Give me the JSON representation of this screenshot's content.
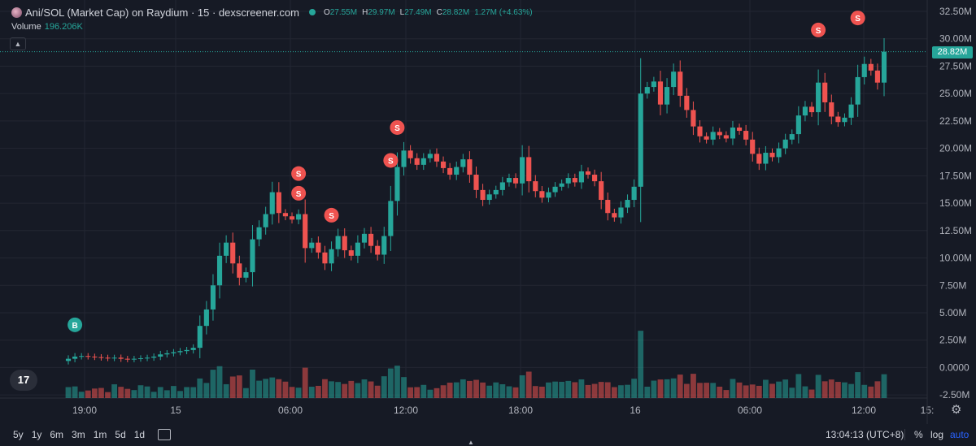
{
  "header": {
    "title": "Ani/SOL (Market Cap) on Raydium · 15 · dexscreener.com",
    "ohlc": [
      {
        "key": "O",
        "value": "27.55M"
      },
      {
        "key": "H",
        "value": "29.97M"
      },
      {
        "key": "L",
        "value": "27.49M"
      },
      {
        "key": "C",
        "value": "28.82M"
      },
      {
        "key": "",
        "value": "1.27M (+4.63%)"
      }
    ],
    "volume_label": "Volume",
    "volume_value": "196.206K"
  },
  "price_tag": "28.82M",
  "tv_logo": "17",
  "bottom_bar": {
    "ranges": [
      "5y",
      "1y",
      "6m",
      "3m",
      "1m",
      "5d",
      "1d"
    ],
    "clock": "13:04:13 (UTC+8)",
    "percent": "%",
    "log": "log",
    "auto": "auto"
  },
  "colors": {
    "up": "#26a69a",
    "down": "#ef5350",
    "background": "#161a25",
    "grid": "#232632"
  },
  "chart_data": {
    "type": "candlestick",
    "title": "Ani/SOL (Market Cap) on Raydium · 15 · dexscreener.com",
    "y_ticks": [
      "32.50M",
      "30.00M",
      "27.50M",
      "25.00M",
      "22.50M",
      "20.00M",
      "17.50M",
      "15.00M",
      "12.50M",
      "10.00M",
      "7.50M",
      "5.00M",
      "2.50M",
      "0.0000",
      "-2.50M"
    ],
    "y_tick_values": [
      32.5,
      30,
      27.5,
      25,
      22.5,
      20,
      17.5,
      15,
      12.5,
      10,
      7.5,
      5,
      2.5,
      0,
      -2.5
    ],
    "x_ticks": [
      "19:00",
      "15",
      "06:00",
      "12:00",
      "18:00",
      "16",
      "06:00",
      "12:00",
      "15:"
    ],
    "ylim": [
      -2.5,
      32.5
    ],
    "last_close": 28.82,
    "markers": [
      {
        "label": "B",
        "index": 1,
        "price": 3.9
      },
      {
        "label": "S",
        "index": 35,
        "price": 17.7
      },
      {
        "label": "S",
        "index": 35,
        "price": 15.9
      },
      {
        "label": "S",
        "index": 40,
        "price": 13.9
      },
      {
        "label": "S",
        "index": 49,
        "price": 18.9
      },
      {
        "label": "S",
        "index": 50,
        "price": 21.9
      },
      {
        "label": "S",
        "index": 114,
        "price": 30.8
      },
      {
        "label": "S",
        "index": 120,
        "price": 31.9
      }
    ],
    "closes": [
      0.8,
      1.0,
      1.05,
      1.0,
      0.95,
      0.9,
      0.85,
      0.9,
      0.8,
      0.75,
      0.8,
      0.85,
      0.9,
      1.0,
      1.2,
      1.3,
      1.4,
      1.5,
      1.6,
      1.8,
      3.8,
      5.3,
      7.5,
      10.2,
      11.4,
      9.5,
      8.2,
      8.7,
      11.7,
      12.8,
      14.0,
      16.0,
      14.1,
      13.8,
      13.5,
      14.0,
      10.9,
      11.4,
      10.5,
      9.5,
      10.8,
      12.0,
      10.7,
      10.2,
      11.4,
      12.2,
      11.1,
      10.3,
      12.0,
      15.2,
      18.3,
      19.8,
      19.1,
      18.5,
      19.1,
      19.5,
      18.8,
      18.2,
      17.6,
      18.3,
      19.0,
      17.6,
      16.2,
      15.3,
      15.8,
      16.2,
      16.9,
      17.3,
      16.8,
      19.2,
      17.0,
      16.1,
      15.5,
      16.0,
      16.5,
      16.8,
      17.3,
      16.9,
      17.9,
      17.6,
      17.0,
      15.3,
      14.1,
      13.7,
      14.6,
      15.3,
      16.5,
      25.0,
      25.6,
      26.1,
      24.0,
      25.6,
      27.0,
      24.8,
      23.5,
      22.0,
      21.1,
      20.8,
      21.5,
      21.2,
      20.9,
      21.9,
      21.6,
      20.8,
      19.5,
      18.6,
      19.6,
      19.2,
      20.0,
      20.8,
      21.3,
      23.0,
      23.8,
      23.3,
      26.0,
      24.2,
      22.9,
      22.4,
      22.8,
      24.0,
      26.5,
      27.7,
      27.1,
      26.0,
      28.82
    ]
  }
}
